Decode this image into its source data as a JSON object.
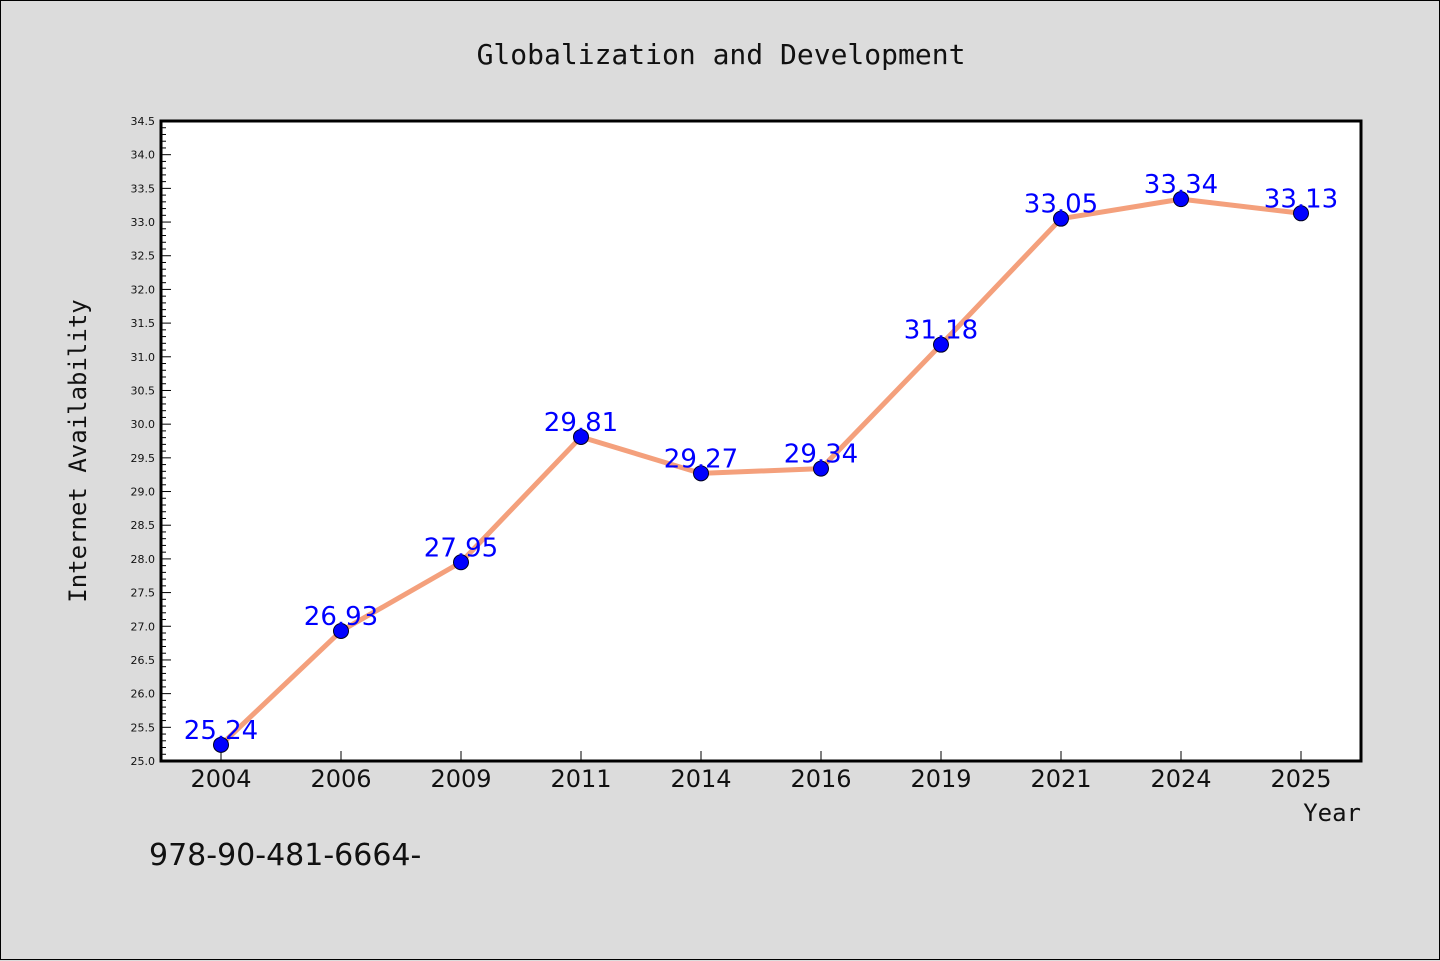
{
  "chart_data": {
    "type": "line",
    "title": "Globalization and Development",
    "xlabel": "Year",
    "ylabel": "Internet Availability",
    "categories": [
      "2004",
      "2006",
      "2009",
      "2011",
      "2014",
      "2016",
      "2019",
      "2021",
      "2024",
      "2025"
    ],
    "series": [
      {
        "values": [
          25.24,
          26.93,
          27.95,
          29.81,
          29.27,
          29.34,
          31.18,
          33.05,
          33.34,
          33.13
        ],
        "data_labels": [
          "25.24",
          "26.93",
          "27.95",
          "29.81",
          "29.27",
          "29.34",
          "31.18",
          "33.05",
          "33.34",
          "33.13"
        ]
      }
    ],
    "ylim": [
      25.0,
      34.5
    ],
    "yticks": [
      "25.0",
      "25.5",
      "26.0",
      "26.5",
      "27.0",
      "27.5",
      "28.0",
      "28.5",
      "29.0",
      "29.5",
      "30.0",
      "30.5",
      "31.0",
      "31.5",
      "32.0",
      "32.5",
      "33.0",
      "33.5",
      "34.0",
      "34.5"
    ],
    "grid": false,
    "line_color": "#f4a07c",
    "marker_color": "#0000ff",
    "label_color": "#0000ff"
  },
  "annotation": "978-90-481-6664-"
}
